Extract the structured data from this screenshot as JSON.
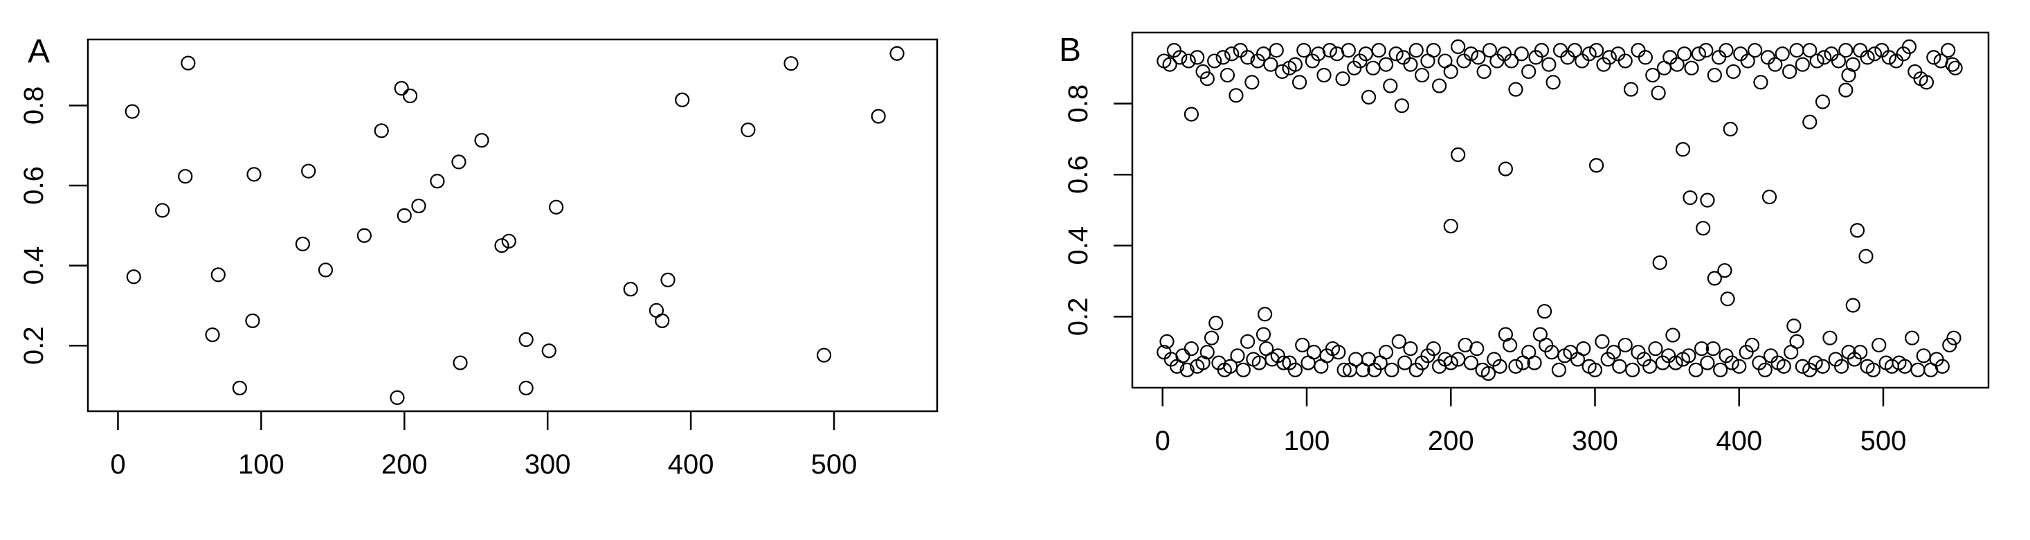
{
  "chart_data": [
    {
      "type": "scatter",
      "panel_label": "A",
      "title": "",
      "xlabel": "",
      "ylabel": "",
      "xlim": [
        -21,
        572
      ],
      "ylim": [
        0.036,
        0.965
      ],
      "xticks": [
        0,
        100,
        200,
        300,
        400,
        500
      ],
      "xtick_labels": [
        "0",
        "100",
        "200",
        "300",
        "400",
        "500"
      ],
      "yticks": [
        0.2,
        0.4,
        0.6,
        0.8
      ],
      "ytick_labels": [
        "0.2",
        "0.4",
        "0.6",
        "0.8"
      ],
      "grid": false,
      "marker": "open-circle",
      "color": "#000000",
      "points": [
        [
          10,
          0.785
        ],
        [
          11,
          0.372
        ],
        [
          31,
          0.538
        ],
        [
          47,
          0.623
        ],
        [
          49,
          0.906
        ],
        [
          66,
          0.227
        ],
        [
          70,
          0.377
        ],
        [
          85,
          0.094
        ],
        [
          94,
          0.262
        ],
        [
          95,
          0.628
        ],
        [
          129,
          0.454
        ],
        [
          133,
          0.636
        ],
        [
          145,
          0.389
        ],
        [
          172,
          0.475
        ],
        [
          184,
          0.737
        ],
        [
          195,
          0.07
        ],
        [
          198,
          0.843
        ],
        [
          200,
          0.525
        ],
        [
          204,
          0.824
        ],
        [
          210,
          0.549
        ],
        [
          223,
          0.611
        ],
        [
          238,
          0.659
        ],
        [
          239,
          0.157
        ],
        [
          254,
          0.713
        ],
        [
          268,
          0.45
        ],
        [
          273,
          0.461
        ],
        [
          285,
          0.215
        ],
        [
          285,
          0.094
        ],
        [
          301,
          0.187
        ],
        [
          306,
          0.546
        ],
        [
          358,
          0.341
        ],
        [
          376,
          0.288
        ],
        [
          380,
          0.262
        ],
        [
          384,
          0.364
        ],
        [
          394,
          0.814
        ],
        [
          440,
          0.739
        ],
        [
          470,
          0.905
        ],
        [
          493,
          0.176
        ],
        [
          531,
          0.773
        ],
        [
          544,
          0.93
        ]
      ]
    },
    {
      "type": "scatter",
      "panel_label": "B",
      "title": "",
      "xlabel": "",
      "ylabel": "",
      "xlim": [
        -21,
        573
      ],
      "ylim": [
        0.0,
        1.0
      ],
      "xticks": [
        0,
        100,
        200,
        300,
        400,
        500
      ],
      "xtick_labels": [
        "0",
        "100",
        "200",
        "300",
        "400",
        "500"
      ],
      "yticks": [
        0.2,
        0.4,
        0.6,
        0.8
      ],
      "ytick_labels": [
        "0.2",
        "0.4",
        "0.6",
        "0.8"
      ],
      "grid": false,
      "marker": "open-circle",
      "color": "#000000",
      "points": [
        [
          20,
          0.77
        ],
        [
          51,
          0.823
        ],
        [
          143,
          0.818
        ],
        [
          166,
          0.794
        ],
        [
          200,
          0.455
        ],
        [
          205,
          0.656
        ],
        [
          238,
          0.616
        ],
        [
          37,
          0.182
        ],
        [
          71,
          0.207
        ],
        [
          301,
          0.626
        ],
        [
          361,
          0.671
        ],
        [
          394,
          0.728
        ],
        [
          449,
          0.748
        ],
        [
          458,
          0.805
        ],
        [
          474,
          0.838
        ],
        [
          476,
          0.88
        ],
        [
          366,
          0.535
        ],
        [
          378,
          0.528
        ],
        [
          421,
          0.537
        ],
        [
          375,
          0.449
        ],
        [
          482,
          0.443
        ],
        [
          488,
          0.37
        ],
        [
          345,
          0.352
        ],
        [
          390,
          0.33
        ],
        [
          383,
          0.308
        ],
        [
          392,
          0.25
        ],
        [
          479,
          0.232
        ],
        [
          265,
          0.215
        ],
        [
          438,
          0.174
        ],
        [
          354,
          0.148
        ],
        [
          1,
          0.92
        ],
        [
          5,
          0.91
        ],
        [
          8,
          0.95
        ],
        [
          12,
          0.93
        ],
        [
          18,
          0.92
        ],
        [
          24,
          0.93
        ],
        [
          28,
          0.89
        ],
        [
          31,
          0.87
        ],
        [
          36,
          0.92
        ],
        [
          42,
          0.93
        ],
        [
          45,
          0.88
        ],
        [
          48,
          0.94
        ],
        [
          54,
          0.95
        ],
        [
          59,
          0.93
        ],
        [
          62,
          0.86
        ],
        [
          66,
          0.92
        ],
        [
          70,
          0.94
        ],
        [
          75,
          0.91
        ],
        [
          79,
          0.95
        ],
        [
          83,
          0.89
        ],
        [
          88,
          0.9
        ],
        [
          92,
          0.91
        ],
        [
          95,
          0.86
        ],
        [
          98,
          0.95
        ],
        [
          104,
          0.92
        ],
        [
          108,
          0.94
        ],
        [
          112,
          0.88
        ],
        [
          116,
          0.95
        ],
        [
          121,
          0.94
        ],
        [
          125,
          0.87
        ],
        [
          129,
          0.95
        ],
        [
          133,
          0.9
        ],
        [
          137,
          0.92
        ],
        [
          141,
          0.94
        ],
        [
          146,
          0.9
        ],
        [
          150,
          0.95
        ],
        [
          155,
          0.91
        ],
        [
          158,
          0.85
        ],
        [
          162,
          0.94
        ],
        [
          167,
          0.93
        ],
        [
          172,
          0.91
        ],
        [
          176,
          0.95
        ],
        [
          180,
          0.88
        ],
        [
          184,
          0.92
        ],
        [
          188,
          0.95
        ],
        [
          192,
          0.85
        ],
        [
          196,
          0.92
        ],
        [
          200,
          0.89
        ],
        [
          205,
          0.96
        ],
        [
          209,
          0.92
        ],
        [
          214,
          0.94
        ],
        [
          219,
          0.93
        ],
        [
          223,
          0.89
        ],
        [
          227,
          0.95
        ],
        [
          232,
          0.92
        ],
        [
          237,
          0.94
        ],
        [
          242,
          0.92
        ],
        [
          245,
          0.84
        ],
        [
          249,
          0.94
        ],
        [
          254,
          0.89
        ],
        [
          259,
          0.93
        ],
        [
          263,
          0.95
        ],
        [
          268,
          0.91
        ],
        [
          271,
          0.86
        ],
        [
          276,
          0.95
        ],
        [
          281,
          0.93
        ],
        [
          286,
          0.95
        ],
        [
          291,
          0.92
        ],
        [
          296,
          0.94
        ],
        [
          301,
          0.95
        ],
        [
          306,
          0.91
        ],
        [
          310,
          0.93
        ],
        [
          316,
          0.94
        ],
        [
          321,
          0.92
        ],
        [
          325,
          0.84
        ],
        [
          330,
          0.95
        ],
        [
          335,
          0.93
        ],
        [
          340,
          0.88
        ],
        [
          344,
          0.83
        ],
        [
          348,
          0.9
        ],
        [
          352,
          0.93
        ],
        [
          357,
          0.91
        ],
        [
          362,
          0.94
        ],
        [
          367,
          0.9
        ],
        [
          372,
          0.94
        ],
        [
          377,
          0.95
        ],
        [
          383,
          0.88
        ],
        [
          386,
          0.93
        ],
        [
          391,
          0.95
        ],
        [
          396,
          0.89
        ],
        [
          401,
          0.94
        ],
        [
          406,
          0.92
        ],
        [
          411,
          0.95
        ],
        [
          415,
          0.86
        ],
        [
          420,
          0.93
        ],
        [
          425,
          0.91
        ],
        [
          430,
          0.94
        ],
        [
          435,
          0.89
        ],
        [
          440,
          0.95
        ],
        [
          444,
          0.91
        ],
        [
          449,
          0.95
        ],
        [
          454,
          0.92
        ],
        [
          459,
          0.93
        ],
        [
          464,
          0.94
        ],
        [
          469,
          0.92
        ],
        [
          474,
          0.95
        ],
        [
          479,
          0.91
        ],
        [
          484,
          0.95
        ],
        [
          489,
          0.93
        ],
        [
          494,
          0.94
        ],
        [
          499,
          0.95
        ],
        [
          504,
          0.93
        ],
        [
          509,
          0.92
        ],
        [
          514,
          0.94
        ],
        [
          518,
          0.96
        ],
        [
          522,
          0.89
        ],
        [
          526,
          0.87
        ],
        [
          530,
          0.86
        ],
        [
          535,
          0.93
        ],
        [
          540,
          0.92
        ],
        [
          545,
          0.95
        ],
        [
          548,
          0.91
        ],
        [
          550,
          0.9
        ],
        [
          1,
          0.1
        ],
        [
          3,
          0.13
        ],
        [
          6,
          0.08
        ],
        [
          10,
          0.06
        ],
        [
          14,
          0.09
        ],
        [
          17,
          0.05
        ],
        [
          20,
          0.11
        ],
        [
          24,
          0.06
        ],
        [
          28,
          0.07
        ],
        [
          31,
          0.1
        ],
        [
          34,
          0.14
        ],
        [
          39,
          0.07
        ],
        [
          43,
          0.05
        ],
        [
          47,
          0.06
        ],
        [
          52,
          0.09
        ],
        [
          56,
          0.05
        ],
        [
          59,
          0.13
        ],
        [
          63,
          0.08
        ],
        [
          67,
          0.07
        ],
        [
          70,
          0.15
        ],
        [
          72,
          0.11
        ],
        [
          76,
          0.08
        ],
        [
          80,
          0.09
        ],
        [
          84,
          0.07
        ],
        [
          88,
          0.07
        ],
        [
          92,
          0.05
        ],
        [
          97,
          0.12
        ],
        [
          101,
          0.07
        ],
        [
          105,
          0.1
        ],
        [
          110,
          0.06
        ],
        [
          114,
          0.09
        ],
        [
          118,
          0.11
        ],
        [
          122,
          0.1
        ],
        [
          126,
          0.05
        ],
        [
          130,
          0.05
        ],
        [
          134,
          0.08
        ],
        [
          139,
          0.05
        ],
        [
          143,
          0.08
        ],
        [
          147,
          0.05
        ],
        [
          151,
          0.07
        ],
        [
          155,
          0.1
        ],
        [
          159,
          0.05
        ],
        [
          164,
          0.13
        ],
        [
          168,
          0.07
        ],
        [
          172,
          0.11
        ],
        [
          176,
          0.05
        ],
        [
          180,
          0.07
        ],
        [
          184,
          0.09
        ],
        [
          188,
          0.11
        ],
        [
          192,
          0.06
        ],
        [
          196,
          0.08
        ],
        [
          200,
          0.07
        ],
        [
          205,
          0.08
        ],
        [
          210,
          0.12
        ],
        [
          214,
          0.07
        ],
        [
          218,
          0.11
        ],
        [
          222,
          0.05
        ],
        [
          226,
          0.04
        ],
        [
          230,
          0.08
        ],
        [
          234,
          0.06
        ],
        [
          238,
          0.15
        ],
        [
          241,
          0.12
        ],
        [
          245,
          0.06
        ],
        [
          250,
          0.07
        ],
        [
          254,
          0.1
        ],
        [
          258,
          0.07
        ],
        [
          262,
          0.15
        ],
        [
          266,
          0.12
        ],
        [
          270,
          0.1
        ],
        [
          275,
          0.05
        ],
        [
          279,
          0.09
        ],
        [
          283,
          0.1
        ],
        [
          288,
          0.08
        ],
        [
          292,
          0.11
        ],
        [
          296,
          0.06
        ],
        [
          300,
          0.05
        ],
        [
          305,
          0.13
        ],
        [
          309,
          0.08
        ],
        [
          313,
          0.1
        ],
        [
          317,
          0.06
        ],
        [
          321,
          0.12
        ],
        [
          326,
          0.05
        ],
        [
          330,
          0.1
        ],
        [
          334,
          0.08
        ],
        [
          338,
          0.06
        ],
        [
          342,
          0.11
        ],
        [
          347,
          0.07
        ],
        [
          351,
          0.09
        ],
        [
          356,
          0.07
        ],
        [
          361,
          0.08
        ],
        [
          365,
          0.09
        ],
        [
          370,
          0.05
        ],
        [
          374,
          0.11
        ],
        [
          378,
          0.07
        ],
        [
          382,
          0.11
        ],
        [
          387,
          0.05
        ],
        [
          391,
          0.09
        ],
        [
          395,
          0.07
        ],
        [
          400,
          0.06
        ],
        [
          405,
          0.1
        ],
        [
          409,
          0.12
        ],
        [
          414,
          0.07
        ],
        [
          418,
          0.05
        ],
        [
          422,
          0.09
        ],
        [
          427,
          0.07
        ],
        [
          431,
          0.06
        ],
        [
          436,
          0.1
        ],
        [
          440,
          0.13
        ],
        [
          444,
          0.06
        ],
        [
          449,
          0.05
        ],
        [
          453,
          0.07
        ],
        [
          458,
          0.06
        ],
        [
          463,
          0.14
        ],
        [
          467,
          0.08
        ],
        [
          471,
          0.06
        ],
        [
          476,
          0.1
        ],
        [
          480,
          0.08
        ],
        [
          484,
          0.1
        ],
        [
          489,
          0.06
        ],
        [
          493,
          0.05
        ],
        [
          497,
          0.12
        ],
        [
          502,
          0.07
        ],
        [
          506,
          0.06
        ],
        [
          511,
          0.07
        ],
        [
          515,
          0.06
        ],
        [
          520,
          0.14
        ],
        [
          524,
          0.05
        ],
        [
          528,
          0.09
        ],
        [
          533,
          0.05
        ],
        [
          537,
          0.08
        ],
        [
          541,
          0.06
        ],
        [
          546,
          0.12
        ],
        [
          549,
          0.14
        ]
      ]
    }
  ]
}
